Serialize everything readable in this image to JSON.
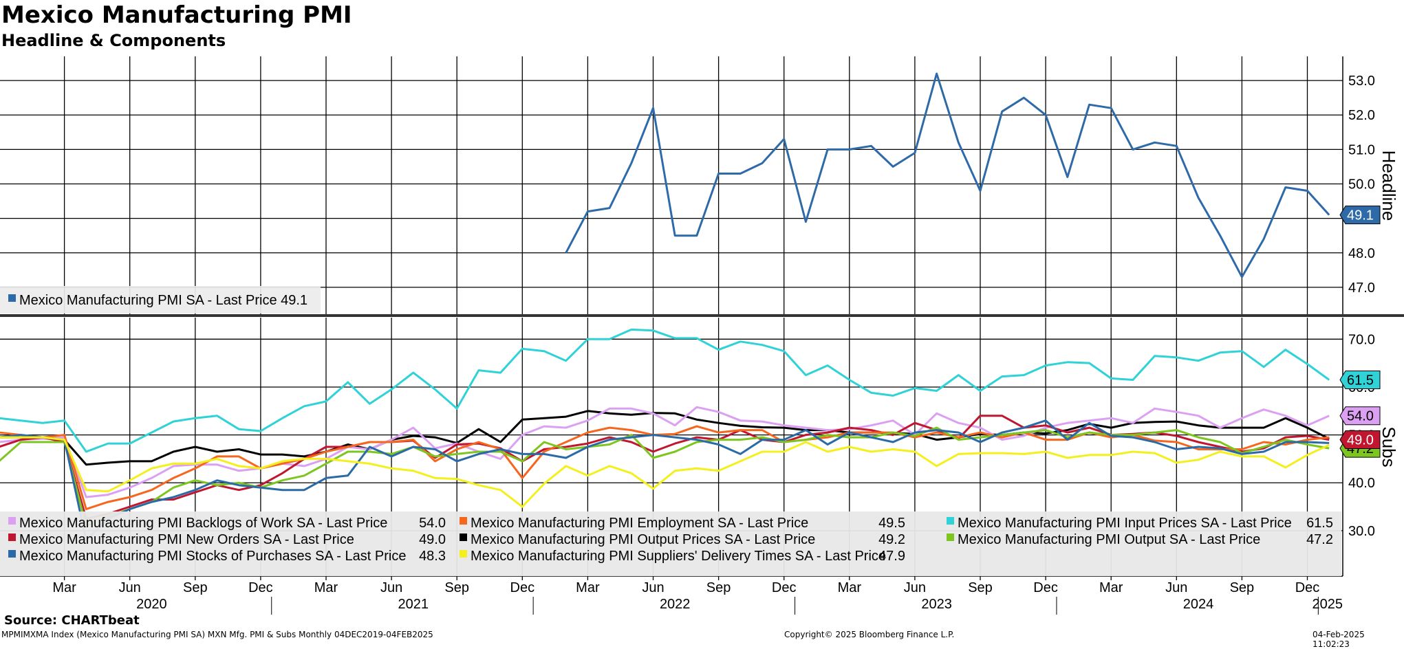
{
  "title": "Mexico Manufacturing PMI",
  "subtitle": "Headline & Components",
  "footer": {
    "source": "Source: CHARTbeat",
    "ticker": "MPMIMXMA Index (Mexico Manufacturing PMI SA) MXN Mfg. PMI & Subs  Monthly 04DEC2019-04FEB2025",
    "copyright": "Copyright© 2025 Bloomberg Finance L.P.",
    "timestamp": "04-Feb-2025 11:02:23"
  },
  "colors": {
    "headline": "#2e6aa8",
    "backlogs": "#dca0f2",
    "employment": "#f5661e",
    "input_prices": "#2fd2d6",
    "new_orders": "#c0162f",
    "output_prices": "#000000",
    "output": "#7cc61f",
    "stocks": "#2a6aa6",
    "delivery": "#f4ef1e"
  },
  "chart_data": [
    {
      "type": "line",
      "panel": "top",
      "ylabel": "Headline",
      "ylim": [
        46.2,
        53.7
      ],
      "yticks": [
        "47.0",
        "48.0",
        "49.0",
        "50.0",
        "51.0",
        "52.0",
        "53.0"
      ],
      "grid": true,
      "legend_position": "bottom-left",
      "x": [
        "2022-02",
        "2022-03",
        "2022-04",
        "2022-05",
        "2022-06",
        "2022-07",
        "2022-08",
        "2022-09",
        "2022-10",
        "2022-11",
        "2022-12",
        "2023-01",
        "2023-02",
        "2023-03",
        "2023-04",
        "2023-05",
        "2023-06",
        "2023-07",
        "2023-08",
        "2023-09",
        "2023-10",
        "2023-11",
        "2023-12",
        "2024-01",
        "2024-02",
        "2024-03",
        "2024-04",
        "2024-05",
        "2024-06",
        "2024-07",
        "2024-08",
        "2024-09",
        "2024-10",
        "2024-11",
        "2024-12",
        "2025-01"
      ],
      "series": [
        {
          "key": "headline",
          "name": "Mexico Manufacturing PMI SA - Last Price",
          "last": "49.1",
          "values": [
            48.0,
            49.2,
            49.3,
            50.6,
            52.2,
            48.5,
            48.5,
            50.3,
            50.3,
            50.6,
            51.3,
            48.9,
            51.0,
            51.0,
            51.1,
            50.5,
            50.9,
            53.2,
            51.2,
            49.8,
            52.1,
            52.5,
            52.0,
            50.2,
            52.3,
            52.2,
            51.0,
            51.2,
            51.1,
            49.6,
            48.5,
            47.3,
            48.4,
            49.9,
            49.8,
            49.1
          ]
        }
      ],
      "legend": [
        {
          "key": "headline",
          "label": "Mexico Manufacturing PMI SA - Last Price 49.1"
        }
      ]
    },
    {
      "type": "line",
      "panel": "bottom",
      "ylabel": "Subs",
      "ylim": [
        20.5,
        74.5
      ],
      "yticks": [
        "30.0",
        "40.0",
        "50.0",
        "60.0",
        "70.0"
      ],
      "grid": true,
      "legend_position": "bottom",
      "x_start": "2019-12",
      "x_axis": {
        "months": [
          "Mar",
          "Jun",
          "Sep",
          "Dec",
          "Mar",
          "Jun",
          "Sep",
          "Dec",
          "Mar",
          "Jun",
          "Sep",
          "Dec",
          "Mar",
          "Jun",
          "Sep",
          "Dec",
          "Mar",
          "Jun",
          "Sep",
          "Dec"
        ],
        "years": [
          "2020",
          "2021",
          "2022",
          "2023",
          "2024",
          "2025"
        ]
      },
      "series": [
        {
          "key": "input_prices",
          "name": "Mexico Manufacturing PMI Input Prices SA - Last Price",
          "last": "61.5",
          "values": [
            53.5,
            53,
            52.5,
            53,
            46.5,
            48.2,
            48.2,
            50.5,
            52.8,
            53.5,
            54,
            51.2,
            50.8,
            53.5,
            56,
            57,
            61,
            56.5,
            59.5,
            63,
            59.5,
            55.5,
            63.5,
            63,
            68,
            67.5,
            65.5,
            70,
            70,
            72,
            71.8,
            70.2,
            70.2,
            67.8,
            69.5,
            68.8,
            67.5,
            62.5,
            64.5,
            61.5,
            58.8,
            58.2,
            59.8,
            59.2,
            62.5,
            59.2,
            62.2,
            62.5,
            64.5,
            65.2,
            65,
            61.8,
            61.5,
            66.5,
            66.2,
            65.5,
            67.2,
            67.5,
            64.2,
            67.8,
            64.8,
            61.5
          ]
        },
        {
          "key": "output_prices",
          "name": "Mexico Manufacturing PMI Output Prices SA - Last Price",
          "last": "49.2",
          "values": [
            49.5,
            49.5,
            49.3,
            49,
            43.8,
            44.2,
            44.5,
            44.5,
            46.5,
            47.5,
            46.5,
            47,
            45.9,
            45.9,
            45.5,
            46.5,
            48,
            47,
            49,
            49.8,
            49.5,
            48.3,
            51.2,
            48.5,
            53.2,
            53.5,
            53.8,
            55,
            54.5,
            54.2,
            54.6,
            54.5,
            53.2,
            52.5,
            51.9,
            51.6,
            51.5,
            51,
            51,
            50.5,
            50.5,
            50.4,
            50.2,
            49,
            49.5,
            50.2,
            50,
            50.5,
            50.3,
            51,
            52.3,
            51.5,
            52.5,
            52.7,
            52.8,
            52,
            51.5,
            51.5,
            51.5,
            53.5,
            51.5,
            49.2
          ]
        },
        {
          "key": "backlogs",
          "name": "Mexico Manufacturing PMI Backlogs of Work SA - Last Price",
          "last": "54.0",
          "values": [
            48.5,
            49,
            49.2,
            49.5,
            37,
            37.5,
            39,
            41,
            43.5,
            43.8,
            43.8,
            42.5,
            43,
            44,
            43.5,
            45,
            47.5,
            47,
            49,
            51.5,
            47.2,
            48.2,
            46.5,
            45,
            50,
            51.8,
            51.5,
            53,
            55.5,
            55.5,
            54.5,
            52,
            55.8,
            54.8,
            53,
            52.8,
            52,
            51.5,
            51,
            51.2,
            52,
            53,
            50,
            54.5,
            52.5,
            51.5,
            49,
            49.8,
            51.5,
            52.5,
            53,
            53.5,
            52.5,
            55.5,
            54.8,
            54,
            51.5,
            53.5,
            55.3,
            54,
            52,
            54
          ]
        },
        {
          "key": "new_orders",
          "name": "Mexico Manufacturing PMI New Orders SA - Last Price",
          "last": "49.0",
          "values": [
            47.5,
            49,
            49.5,
            48.5,
            32.5,
            33.5,
            35,
            36.5,
            36.5,
            38,
            39.5,
            38.5,
            39.5,
            42,
            45,
            47.5,
            47.5,
            48.5,
            48.5,
            48.8,
            45.2,
            48,
            48.2,
            47.2,
            44.5,
            47,
            47.5,
            48.2,
            49.5,
            48.5,
            46.5,
            48.2,
            49.5,
            49,
            51,
            49,
            48.5,
            50,
            50.5,
            51.5,
            51,
            50,
            52.5,
            51,
            49.2,
            54,
            54,
            51.5,
            52,
            50.5,
            51.5,
            50,
            50.2,
            50.5,
            49.8,
            48.5,
            47.5,
            46.5,
            47.2,
            49.5,
            49.8,
            49
          ]
        },
        {
          "key": "employment",
          "name": "Mexico Manufacturing PMI Employment SA - Last Price",
          "last": "49.5",
          "values": [
            50.5,
            50,
            49.5,
            50,
            34.5,
            36,
            37,
            38.5,
            41,
            43,
            45.5,
            45.5,
            43,
            44,
            45,
            46.5,
            47.5,
            48.5,
            48.5,
            49,
            44.5,
            47,
            48.5,
            47,
            41,
            46.5,
            48.5,
            50.5,
            51.5,
            51,
            50,
            50.2,
            51.8,
            50.5,
            51,
            51,
            48.5,
            49,
            49.5,
            50.5,
            50.5,
            50.5,
            49.5,
            50.5,
            49.5,
            50.5,
            49.5,
            50.5,
            49,
            49,
            50.5,
            49.5,
            50,
            48.8,
            48.5,
            47,
            47,
            47,
            48.5,
            48,
            49,
            49.5
          ]
        },
        {
          "key": "output",
          "name": "Mexico Manufacturing PMI Output SA - Last Price",
          "last": "47.2",
          "values": [
            44.5,
            48.5,
            48.5,
            48.5,
            31,
            33,
            34.5,
            36,
            39,
            40.5,
            39.5,
            40,
            39,
            40.5,
            41.5,
            44,
            46.5,
            46.5,
            46,
            47.5,
            45.5,
            46,
            46.5,
            46.5,
            44.5,
            48.5,
            47,
            47.5,
            48,
            50,
            45.2,
            46.5,
            48.5,
            49,
            49,
            49.5,
            48.5,
            49,
            50,
            49.5,
            49.5,
            50.5,
            49.8,
            51.5,
            49,
            49.5,
            50,
            50.5,
            51,
            49.5,
            50.5,
            50,
            50,
            50.5,
            51,
            49.5,
            48.5,
            46.2,
            47.5,
            49,
            48,
            47.2
          ]
        },
        {
          "key": "stocks",
          "name": "Mexico Manufacturing PMI Stocks of Purchases SA - Last Price",
          "last": "48.3",
          "values": [
            49.5,
            50,
            49.5,
            49,
            28,
            32.5,
            34.5,
            36,
            37,
            38.5,
            40.5,
            39.5,
            39,
            38.5,
            38.5,
            41,
            41.5,
            47.5,
            45.5,
            47.5,
            47,
            44.5,
            46,
            47,
            46,
            46,
            45.2,
            47.5,
            49,
            49.5,
            50,
            49.5,
            49,
            48,
            46,
            49,
            49,
            51,
            48,
            50.5,
            49.5,
            48.5,
            50.5,
            51,
            50.5,
            48.5,
            50.5,
            51.5,
            53,
            49,
            52.5,
            49.8,
            49.5,
            48.5,
            47,
            47.5,
            47.2,
            46,
            46.5,
            48.5,
            48.5,
            48.3
          ]
        },
        {
          "key": "delivery",
          "name": "Mexico Manufacturing PMI Suppliers' Delivery Times SA - Last Price",
          "last": "47.9",
          "values": [
            49.5,
            49.5,
            49.5,
            49,
            38.5,
            38.2,
            40.5,
            43,
            44,
            44,
            45,
            43.5,
            43,
            44.5,
            45,
            45,
            44.5,
            44,
            43,
            42.5,
            41,
            40.8,
            39.5,
            38.5,
            35,
            39.8,
            43.5,
            41.5,
            43.5,
            42,
            38.8,
            42.5,
            43,
            42.5,
            44.5,
            46.5,
            46.5,
            48.5,
            46.5,
            47.5,
            46.5,
            47,
            46.5,
            43.5,
            46,
            46.2,
            46.2,
            46,
            46.5,
            45.2,
            45.8,
            45.8,
            46.5,
            46.2,
            44.2,
            44.8,
            46.5,
            45.5,
            45.5,
            43.2,
            45.8,
            47.9
          ]
        }
      ],
      "legend": [
        {
          "key": "backlogs",
          "label": "Mexico Manufacturing PMI Backlogs of Work SA - Last Price",
          "value": "54.0"
        },
        {
          "key": "employment",
          "label": "Mexico Manufacturing PMI Employment SA - Last Price",
          "value": "49.5"
        },
        {
          "key": "input_prices",
          "label": "Mexico Manufacturing PMI Input Prices SA - Last Price",
          "value": "61.5"
        },
        {
          "key": "new_orders",
          "label": "Mexico Manufacturing PMI New Orders SA - Last Price",
          "value": "49.0"
        },
        {
          "key": "output_prices",
          "label": "Mexico Manufacturing PMI Output Prices SA - Last Price",
          "value": "49.2"
        },
        {
          "key": "output",
          "label": "Mexico Manufacturing PMI Output SA - Last Price",
          "value": "47.2"
        },
        {
          "key": "stocks",
          "label": "Mexico Manufacturing PMI Stocks of Purchases SA - Last Price",
          "value": "48.3"
        },
        {
          "key": "delivery",
          "label": "Mexico Manufacturing PMI Suppliers' Delivery Times SA - Last Price",
          "value": "47.9"
        }
      ],
      "end_tags": [
        "input_prices",
        "backlogs",
        "new_orders",
        "output"
      ]
    }
  ]
}
